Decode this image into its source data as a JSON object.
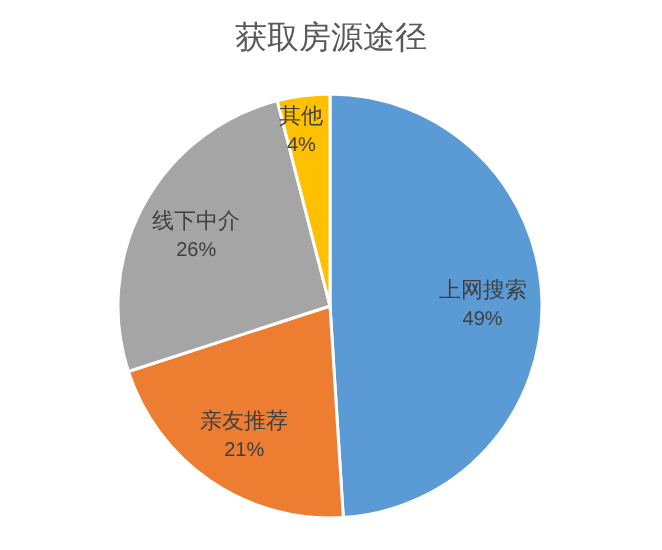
{
  "chart_data": {
    "type": "pie",
    "title": "获取房源途径",
    "categories": [
      "上网搜索",
      "亲友推荐",
      "线下中介",
      "其他"
    ],
    "values": [
      49,
      21,
      26,
      4
    ],
    "colors": [
      "#5b9bd5",
      "#ed7d31",
      "#a5a5a5",
      "#ffc000"
    ],
    "value_labels": [
      "49%",
      "21%",
      "26%",
      "4%"
    ]
  }
}
